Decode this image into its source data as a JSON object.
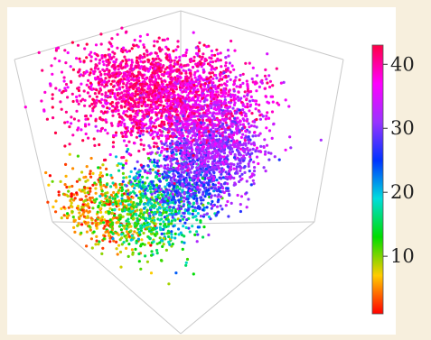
{
  "chart_data": {
    "type": "scatter",
    "title": "",
    "xlabel": "",
    "ylabel": "",
    "zlabel": "",
    "colorbar": {
      "ticks": [
        "10",
        "20",
        "30",
        "40"
      ],
      "tick_values": [
        10,
        20,
        30,
        40
      ],
      "range": [
        1,
        43
      ],
      "colormap": [
        "#ff0000",
        "#ffcc00",
        "#00dd00",
        "#00dddd",
        "#0033ff",
        "#9933ff",
        "#ff00ff",
        "#ff0044"
      ]
    },
    "grid": false,
    "box": true,
    "clusters": [
      {
        "name": "",
        "value": 40,
        "x": 0.35,
        "y": 0.4,
        "z": 0.82,
        "spread": 0.28,
        "count": 1400
      },
      {
        "name": "",
        "value": 37,
        "x": 0.6,
        "y": 0.55,
        "z": 0.78,
        "spread": 0.24,
        "count": 900
      },
      {
        "name": "",
        "value": 32,
        "x": 0.75,
        "y": 0.45,
        "z": 0.6,
        "spread": 0.2,
        "count": 900
      },
      {
        "name": "",
        "value": 27,
        "x": 0.7,
        "y": 0.35,
        "z": 0.45,
        "spread": 0.18,
        "count": 450
      },
      {
        "name": "",
        "value": 18,
        "x": 0.55,
        "y": 0.3,
        "z": 0.32,
        "spread": 0.2,
        "count": 350
      },
      {
        "name": "",
        "value": 12,
        "x": 0.45,
        "y": 0.25,
        "z": 0.22,
        "spread": 0.22,
        "count": 350
      },
      {
        "name": "",
        "value": 5,
        "x": 0.2,
        "y": 0.2,
        "z": 0.18,
        "spread": 0.2,
        "count": 350
      }
    ]
  }
}
